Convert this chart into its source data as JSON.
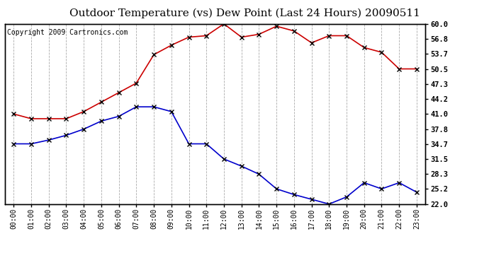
{
  "title": "Outdoor Temperature (vs) Dew Point (Last 24 Hours) 20090511",
  "copyright": "Copyright 2009 Cartronics.com",
  "hours": [
    "00:00",
    "01:00",
    "02:00",
    "03:00",
    "04:00",
    "05:00",
    "06:00",
    "07:00",
    "08:00",
    "09:00",
    "10:00",
    "11:00",
    "12:00",
    "13:00",
    "14:00",
    "15:00",
    "16:00",
    "17:00",
    "18:00",
    "19:00",
    "20:00",
    "21:00",
    "22:00",
    "23:00"
  ],
  "temp": [
    41.0,
    40.0,
    40.0,
    40.0,
    41.5,
    43.5,
    45.5,
    47.5,
    53.5,
    55.5,
    57.2,
    57.5,
    60.0,
    57.2,
    57.8,
    59.5,
    58.5,
    56.0,
    57.5,
    57.5,
    55.0,
    54.0,
    50.5,
    50.5
  ],
  "dewpoint": [
    34.7,
    34.7,
    35.5,
    36.5,
    37.8,
    39.5,
    40.5,
    42.5,
    42.5,
    41.5,
    34.7,
    34.7,
    31.5,
    30.0,
    28.3,
    25.2,
    24.0,
    23.0,
    22.0,
    23.5,
    26.5,
    25.2,
    26.5,
    24.5
  ],
  "temp_color": "#cc0000",
  "dew_color": "#0000cc",
  "bg_color": "#ffffff",
  "grid_color": "#aaaaaa",
  "yticks": [
    22.0,
    25.2,
    28.3,
    31.5,
    34.7,
    37.8,
    41.0,
    44.2,
    47.3,
    50.5,
    53.7,
    56.8,
    60.0
  ],
  "ymin": 22.0,
  "ymax": 60.0,
  "marker": "x",
  "markersize": 4,
  "linewidth": 1.2,
  "title_fontsize": 11,
  "copyright_fontsize": 7,
  "tick_fontsize": 7,
  "ytick_fontsize": 7.5
}
